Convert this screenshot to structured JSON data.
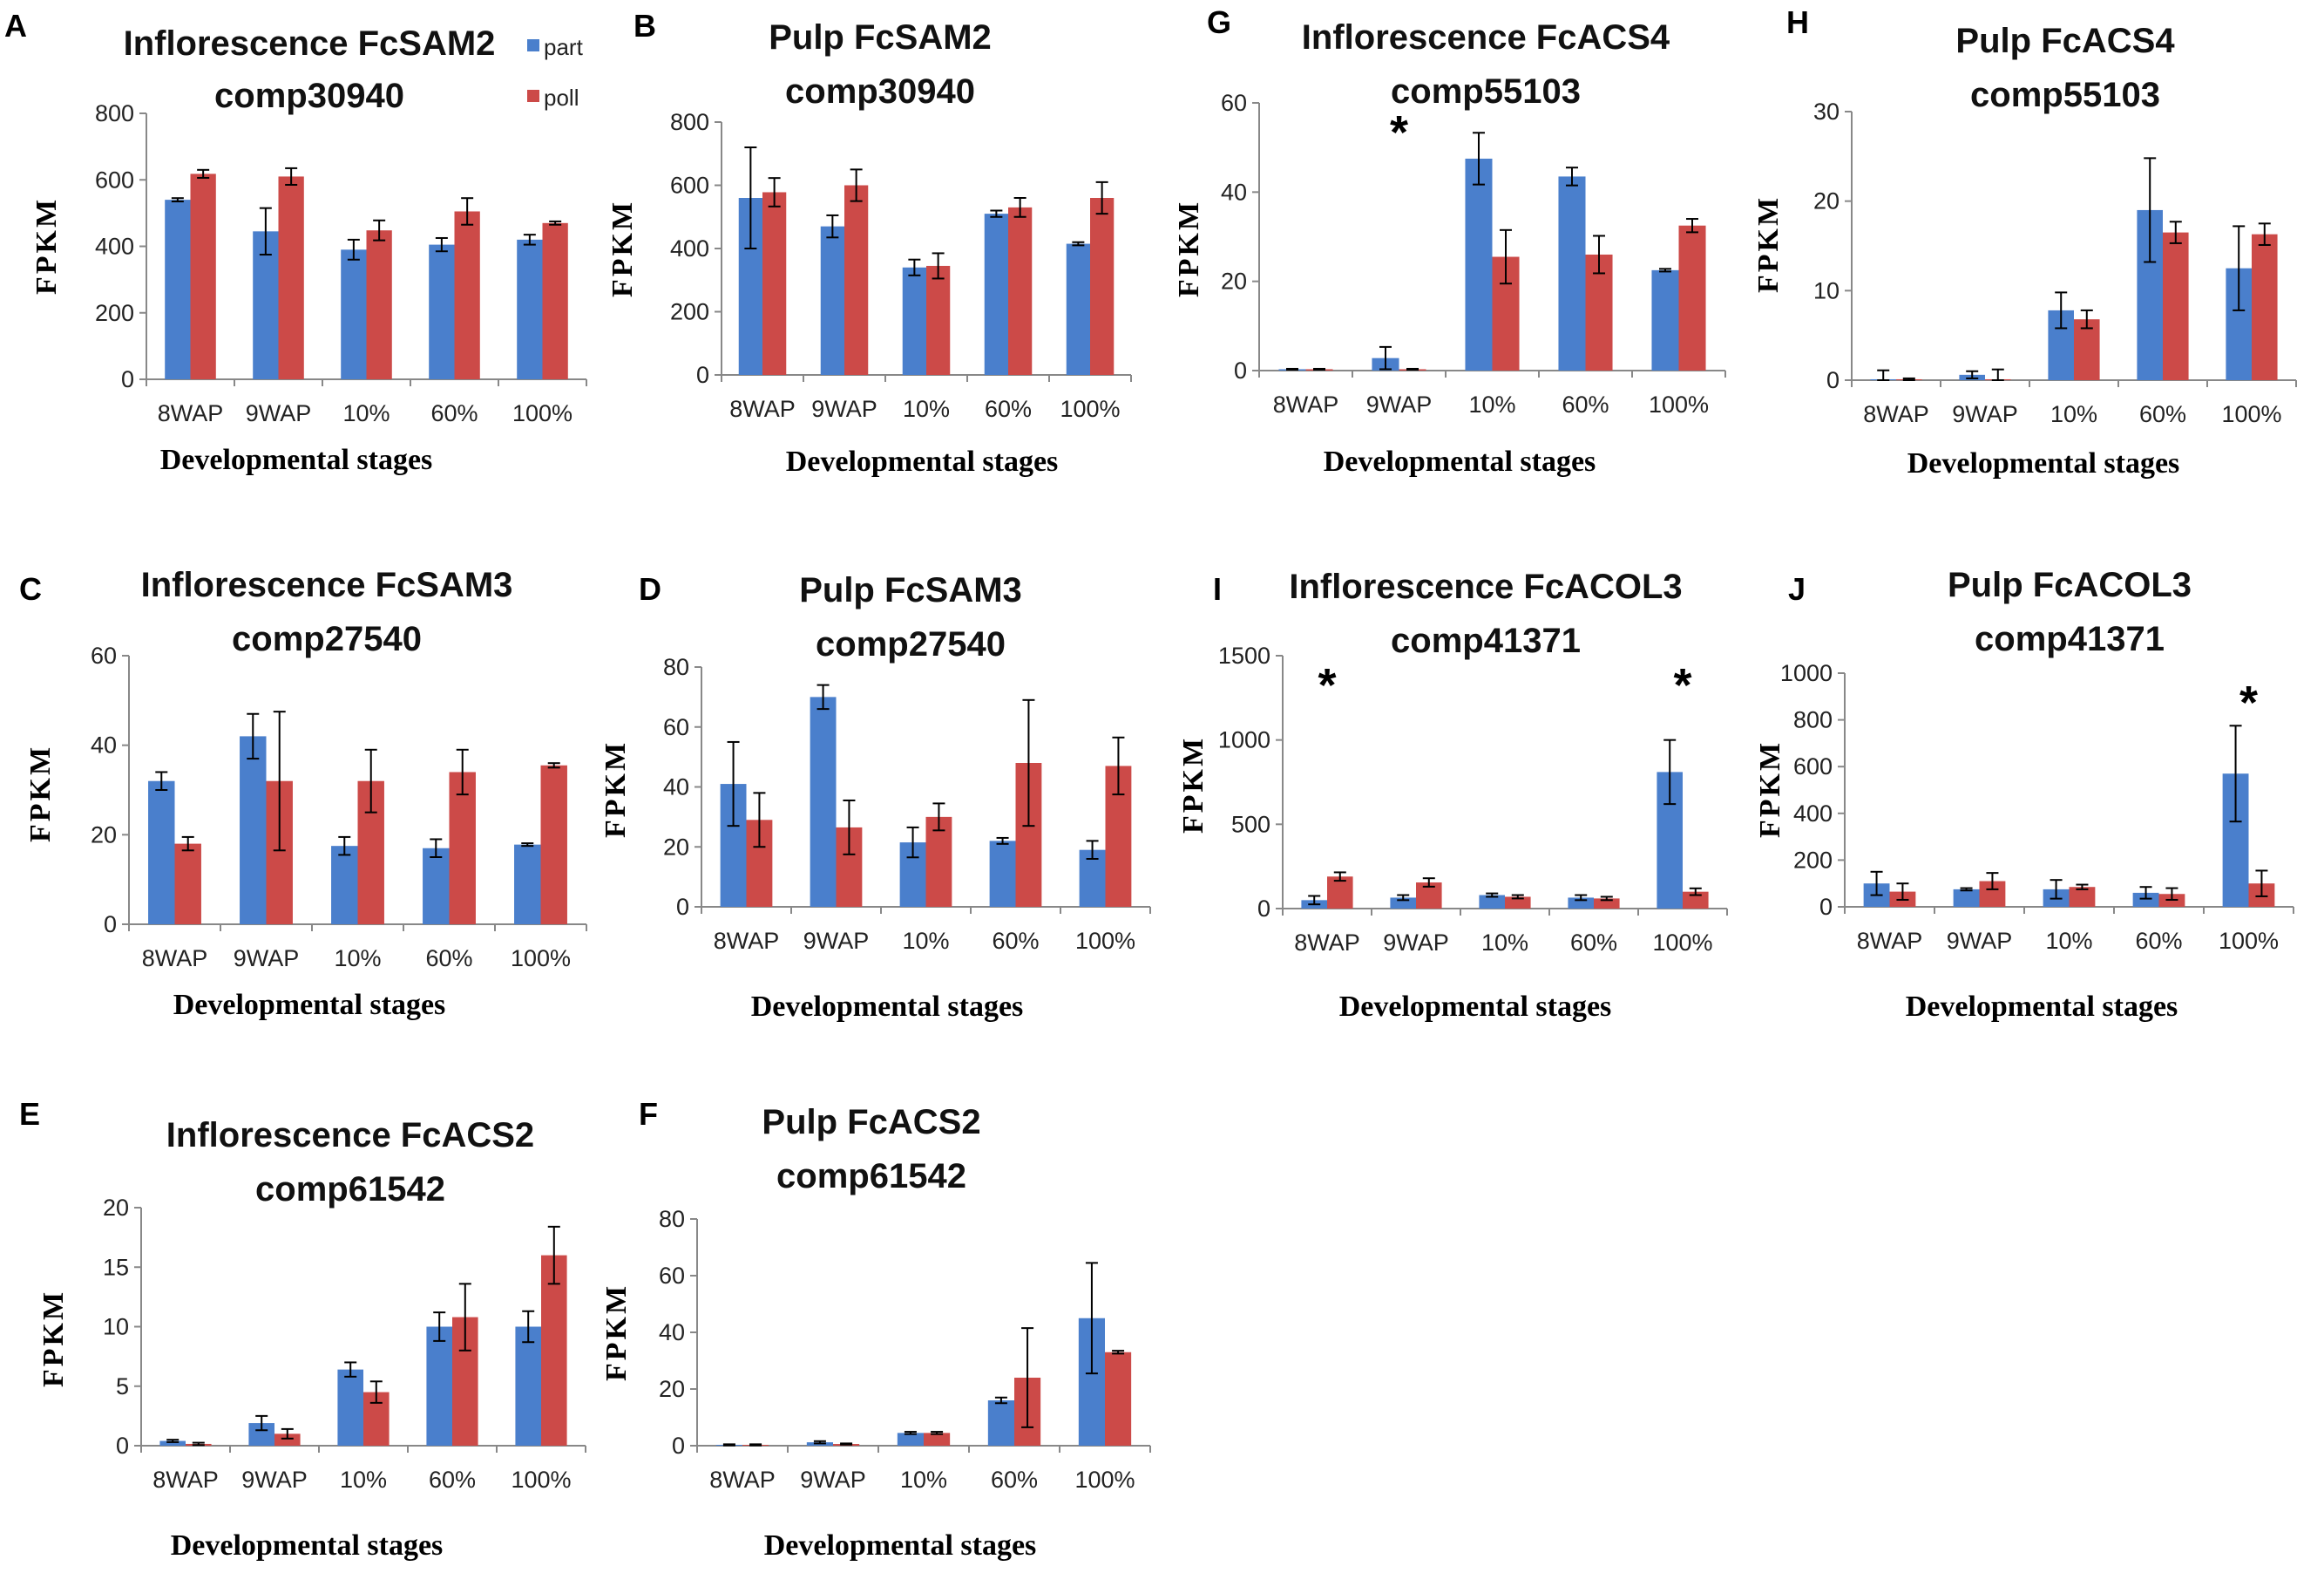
{
  "colors": {
    "part": "#4a7fcc",
    "poll": "#cc4a48"
  },
  "legend": {
    "part": "part",
    "poll": "poll"
  },
  "chart_data": [
    {
      "id": "A",
      "panel": "A",
      "type": "bar",
      "title": [
        "Inflorescence FcSAM2",
        "comp30940"
      ],
      "ylabel": "FPKM",
      "xlabel": "Developmental stages",
      "categories": [
        "8WAP",
        "9WAP",
        "10%",
        "60%",
        "100%"
      ],
      "yticks": [
        0,
        200,
        400,
        600,
        800
      ],
      "ylim": [
        0,
        800
      ],
      "series": [
        {
          "name": "part",
          "values": [
            540,
            445,
            390,
            405,
            420
          ],
          "errors": [
            5,
            70,
            30,
            20,
            15
          ]
        },
        {
          "name": "poll",
          "values": [
            618,
            610,
            448,
            505,
            470
          ],
          "errors": [
            12,
            25,
            30,
            40,
            5
          ]
        }
      ],
      "stars": []
    },
    {
      "id": "B",
      "panel": "B",
      "type": "bar",
      "title": [
        "Pulp FcSAM2",
        "comp30940"
      ],
      "ylabel": "FPKM",
      "xlabel": "Developmental stages",
      "categories": [
        "8WAP",
        "9WAP",
        "10%",
        "60%",
        "100%"
      ],
      "yticks": [
        0,
        200,
        400,
        600,
        800
      ],
      "ylim": [
        0,
        800
      ],
      "series": [
        {
          "name": "part",
          "values": [
            560,
            470,
            340,
            510,
            415
          ],
          "errors": [
            160,
            35,
            25,
            10,
            5
          ]
        },
        {
          "name": "poll",
          "values": [
            578,
            600,
            345,
            530,
            560
          ],
          "errors": [
            45,
            50,
            40,
            30,
            50
          ]
        }
      ],
      "stars": []
    },
    {
      "id": "C",
      "panel": "C",
      "type": "bar",
      "title": [
        "Inflorescence FcSAM3",
        "comp27540"
      ],
      "ylabel": "FPKM",
      "xlabel": "Developmental stages",
      "categories": [
        "8WAP",
        "9WAP",
        "10%",
        "60%",
        "100%"
      ],
      "yticks": [
        0,
        20,
        40,
        60
      ],
      "ylim": [
        0,
        60
      ],
      "series": [
        {
          "name": "part",
          "values": [
            32,
            42,
            17.5,
            17,
            17.8
          ],
          "errors": [
            2,
            5,
            2,
            2,
            0.3
          ]
        },
        {
          "name": "poll",
          "values": [
            18,
            32,
            32,
            34,
            35.5
          ],
          "errors": [
            1.5,
            15.5,
            7,
            5,
            0.5
          ]
        }
      ],
      "stars": []
    },
    {
      "id": "D",
      "panel": "D",
      "type": "bar",
      "title": [
        "Pulp FcSAM3",
        "comp27540"
      ],
      "ylabel": "FPKM",
      "xlabel": "Developmental stages",
      "categories": [
        "8WAP",
        "9WAP",
        "10%",
        "60%",
        "100%"
      ],
      "yticks": [
        0,
        20,
        40,
        60,
        80
      ],
      "ylim": [
        0,
        80
      ],
      "series": [
        {
          "name": "part",
          "values": [
            41,
            70,
            21.5,
            22,
            19
          ],
          "errors": [
            14,
            4,
            5,
            1,
            3
          ]
        },
        {
          "name": "poll",
          "values": [
            29,
            26.5,
            30,
            48,
            47
          ],
          "errors": [
            9,
            9,
            4.5,
            21,
            9.5
          ]
        }
      ],
      "stars": []
    },
    {
      "id": "E",
      "panel": "E",
      "type": "bar",
      "title": [
        "Inflorescence FcACS2",
        "comp61542"
      ],
      "ylabel": "FPKM",
      "xlabel": "Developmental stages",
      "categories": [
        "8WAP",
        "9WAP",
        "10%",
        "60%",
        "100%"
      ],
      "yticks": [
        0,
        5,
        10,
        15,
        20
      ],
      "ylim": [
        0,
        20
      ],
      "series": [
        {
          "name": "part",
          "values": [
            0.4,
            1.9,
            6.4,
            10,
            10
          ],
          "errors": [
            0.1,
            0.6,
            0.6,
            1.2,
            1.3
          ]
        },
        {
          "name": "poll",
          "values": [
            0.15,
            1,
            4.5,
            10.8,
            16
          ],
          "errors": [
            0.1,
            0.4,
            0.9,
            2.8,
            2.4
          ]
        }
      ],
      "stars": []
    },
    {
      "id": "F",
      "panel": "F",
      "type": "bar",
      "title": [
        "Pulp FcACS2",
        "comp61542"
      ],
      "ylabel": "FPKM",
      "xlabel": "Developmental stages",
      "categories": [
        "8WAP",
        "9WAP",
        "10%",
        "60%",
        "100%"
      ],
      "yticks": [
        0,
        20,
        40,
        60,
        80
      ],
      "ylim": [
        0,
        80
      ],
      "series": [
        {
          "name": "part",
          "values": [
            0.3,
            1.2,
            4.5,
            16,
            45
          ],
          "errors": [
            0.2,
            0.4,
            0.4,
            1,
            19.5
          ]
        },
        {
          "name": "poll",
          "values": [
            0.3,
            0.6,
            4.5,
            24,
            33
          ],
          "errors": [
            0.2,
            0.2,
            0.4,
            17.5,
            0.5
          ]
        }
      ],
      "stars": []
    },
    {
      "id": "G",
      "panel": "G",
      "type": "bar",
      "title": [
        "Inflorescence FcACS4",
        "comp55103"
      ],
      "ylabel": "FPKM",
      "xlabel": "Developmental stages",
      "categories": [
        "8WAP",
        "9WAP",
        "10%",
        "60%",
        "100%"
      ],
      "yticks": [
        0,
        20,
        40,
        60
      ],
      "ylim": [
        0,
        60
      ],
      "series": [
        {
          "name": "part",
          "values": [
            0.3,
            2.8,
            47.5,
            43.5,
            22.5
          ],
          "errors": [
            0.1,
            2.5,
            5.8,
            2,
            0.3
          ]
        },
        {
          "name": "poll",
          "values": [
            0.3,
            0.3,
            25.5,
            26,
            32.5
          ],
          "errors": [
            0.1,
            0.1,
            6,
            4.2,
            1.5
          ]
        }
      ],
      "stars": [
        "9WAP"
      ]
    },
    {
      "id": "H",
      "panel": "H",
      "type": "bar",
      "title": [
        "Pulp FcACS4",
        "comp55103"
      ],
      "ylabel": "FPKM",
      "xlabel": "Developmental stages",
      "categories": [
        "8WAP",
        "9WAP",
        "10%",
        "60%",
        "100%"
      ],
      "yticks": [
        0,
        10,
        20,
        30
      ],
      "ylim": [
        0,
        30
      ],
      "series": [
        {
          "name": "part",
          "values": [
            0.1,
            0.6,
            7.8,
            19,
            12.5
          ],
          "errors": [
            1,
            0.4,
            2,
            5.8,
            4.7
          ]
        },
        {
          "name": "poll",
          "values": [
            0.1,
            0.1,
            6.8,
            16.5,
            16.3
          ],
          "errors": [
            0.1,
            1.1,
            1,
            1.2,
            1.2
          ]
        }
      ],
      "stars": []
    },
    {
      "id": "I",
      "panel": "I",
      "type": "bar",
      "title": [
        "Inflorescence FcACOL3",
        "comp41371"
      ],
      "ylabel": "FPKM",
      "xlabel": "Developmental stages",
      "categories": [
        "8WAP",
        "9WAP",
        "10%",
        "60%",
        "100%"
      ],
      "yticks": [
        0,
        500,
        1000,
        1500
      ],
      "ylim": [
        0,
        1500
      ],
      "series": [
        {
          "name": "part",
          "values": [
            50,
            65,
            80,
            65,
            810
          ],
          "errors": [
            25,
            15,
            10,
            15,
            190
          ]
        },
        {
          "name": "poll",
          "values": [
            190,
            155,
            70,
            60,
            100
          ],
          "errors": [
            25,
            25,
            10,
            10,
            20
          ]
        }
      ],
      "stars": [
        "8WAP",
        "100%"
      ]
    },
    {
      "id": "J",
      "panel": "J",
      "type": "bar",
      "title": [
        "Pulp FcACOL3",
        "comp41371"
      ],
      "ylabel": "FPKM",
      "xlabel": "Developmental stages",
      "categories": [
        "8WAP",
        "9WAP",
        "10%",
        "60%",
        "100%"
      ],
      "yticks": [
        0,
        200,
        400,
        600,
        800,
        1000
      ],
      "ylim": [
        0,
        1000
      ],
      "series": [
        {
          "name": "part",
          "values": [
            100,
            75,
            75,
            60,
            570
          ],
          "errors": [
            50,
            5,
            40,
            25,
            205
          ]
        },
        {
          "name": "poll",
          "values": [
            65,
            110,
            85,
            55,
            100
          ],
          "errors": [
            35,
            35,
            10,
            25,
            55
          ]
        }
      ],
      "stars": [
        "100%"
      ]
    }
  ]
}
